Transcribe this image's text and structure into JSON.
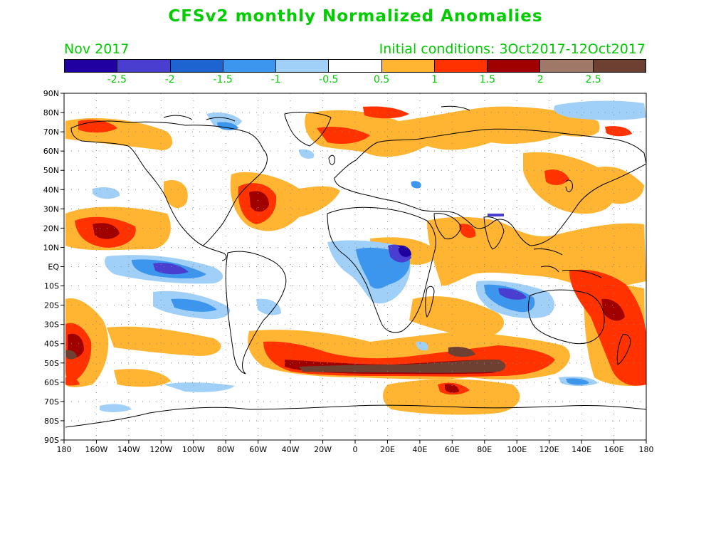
{
  "title": "CFSv2 monthly Normalized Anomalies",
  "subtitle_left": "Nov 2017",
  "subtitle_right": "Initial conditions: 3Oct2017-12Oct2017",
  "colorbar": {
    "colors": [
      "#2000a0",
      "#4a3ed0",
      "#1e64d0",
      "#3c96ee",
      "#a0d0f8",
      "#ffffff",
      "#ffb432",
      "#ff3200",
      "#a00000",
      "#a07868",
      "#6e4032"
    ],
    "labels": [
      "-2.5",
      "-2",
      "-1.5",
      "-1",
      "-0.5",
      "0.5",
      "1",
      "1.5",
      "2",
      "2.5"
    ]
  },
  "map": {
    "lon_labels": [
      "180",
      "160W",
      "140W",
      "120W",
      "100W",
      "80W",
      "60W",
      "40W",
      "20W",
      "0",
      "20E",
      "40E",
      "60E",
      "80E",
      "100E",
      "120E",
      "140E",
      "160E",
      "180"
    ],
    "lat_labels": [
      "90N",
      "80N",
      "70N",
      "60N",
      "50N",
      "40N",
      "30N",
      "20N",
      "10N",
      "EQ",
      "10S",
      "20S",
      "30S",
      "40S",
      "50S",
      "60S",
      "70S",
      "80S",
      "90S"
    ]
  }
}
